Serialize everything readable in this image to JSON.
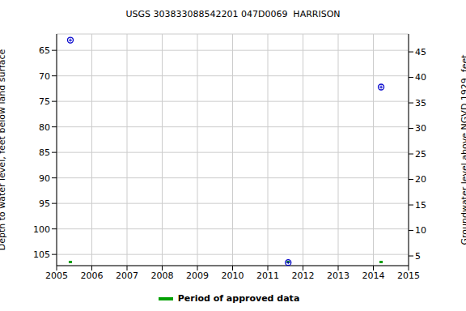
{
  "chart_data": {
    "type": "scatter",
    "title": "USGS 303833088542201 047D0069  HARRISON",
    "y_label": "Depth to water level, feet below land surface",
    "y2_label": "Groundwater level above NGVD 1929, feet",
    "xlim": [
      2005,
      2015
    ],
    "xticks": [
      2005,
      2006,
      2007,
      2008,
      2009,
      2010,
      2011,
      2012,
      2013,
      2014,
      2015
    ],
    "ylim": [
      107.2,
      61.8
    ],
    "yticks": [
      65,
      70,
      75,
      80,
      85,
      90,
      95,
      100,
      105
    ],
    "y2lim": [
      3.1,
      48.5
    ],
    "y2ticks": [
      5,
      10,
      15,
      20,
      25,
      30,
      35,
      40,
      45
    ],
    "grid": true,
    "legend": "bottom",
    "series": [
      {
        "color": "#0000cc",
        "marker": "circle",
        "x": [
          2005.39,
          2011.58,
          2014.22
        ],
        "values": [
          63,
          106.6,
          72.2
        ]
      },
      {
        "name": "Period of approved data",
        "color": "#00a000",
        "marker": "bar",
        "x": [
          2005.39,
          2011.58,
          2014.22
        ]
      }
    ]
  }
}
